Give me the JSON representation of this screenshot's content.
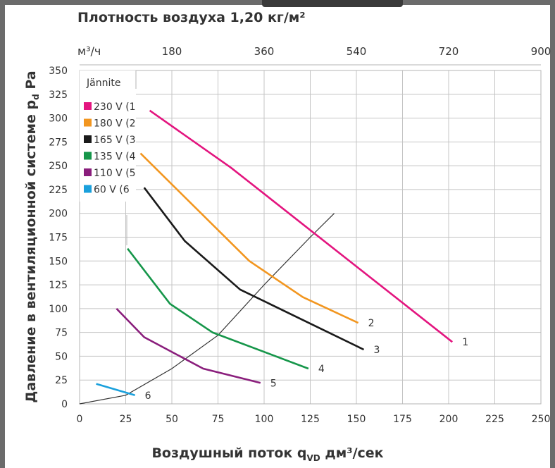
{
  "density_label": "Плотность воздуха 1,20 кг/м²",
  "chart_data": {
    "type": "line",
    "xlabel": "Воздушный поток q",
    "xlabel_sub": "VD",
    "xlabel_unit": " дм³/сек",
    "ylabel": "Давление в вентиляционной системе p",
    "ylabel_sub": "d",
    "ylabel_unit": " Pa",
    "xlim": [
      0,
      250
    ],
    "ylim": [
      0,
      350
    ],
    "x_ticks": [
      0,
      25,
      50,
      75,
      100,
      125,
      150,
      175,
      200,
      225,
      250
    ],
    "y_ticks": [
      0,
      25,
      50,
      75,
      100,
      125,
      150,
      175,
      200,
      225,
      250,
      275,
      300,
      325,
      350
    ],
    "secondary_x": {
      "unit_label": "м³/ч",
      "ticks": [
        180,
        360,
        540,
        720,
        900
      ],
      "factor": 3.6
    },
    "grid": true,
    "legend": {
      "title": "Jännite",
      "placement": "top-left"
    },
    "series": [
      {
        "name": "230 V",
        "legend_label": "230 V  (1",
        "end_label": "1",
        "color": "#e3157f",
        "points": [
          [
            38,
            308
          ],
          [
            82,
            248
          ],
          [
            202,
            65
          ]
        ]
      },
      {
        "name": "180 V",
        "legend_label": "180 V  (2",
        "end_label": "2",
        "color": "#f2961f",
        "points": [
          [
            33,
            263
          ],
          [
            92,
            150
          ],
          [
            121,
            112
          ],
          [
            151,
            85
          ]
        ]
      },
      {
        "name": "165 V",
        "legend_label": "165 V  (3",
        "end_label": "3",
        "color": "#1a1a1a",
        "points": [
          [
            35,
            227
          ],
          [
            57,
            171
          ],
          [
            87,
            120
          ],
          [
            154,
            57
          ]
        ]
      },
      {
        "name": "135 V",
        "legend_label": "135 V  (4",
        "end_label": "4",
        "color": "#16964a",
        "points": [
          [
            26,
            163
          ],
          [
            49,
            105
          ],
          [
            72,
            75
          ],
          [
            124,
            37
          ]
        ]
      },
      {
        "name": "110 V",
        "legend_label": "110 V  (5",
        "end_label": "5",
        "color": "#8a1e7c",
        "points": [
          [
            20,
            100
          ],
          [
            35,
            70
          ],
          [
            67,
            37
          ],
          [
            98,
            22
          ]
        ]
      },
      {
        "name": "60 V",
        "legend_label": " 60 V  (6",
        "end_label": "6",
        "color": "#1aa0dc",
        "points": [
          [
            9,
            21
          ],
          [
            30,
            9
          ]
        ]
      }
    ],
    "system_curve": {
      "color": "#333333",
      "points": [
        [
          0,
          0
        ],
        [
          25,
          9
        ],
        [
          50,
          37
        ],
        [
          75,
          72
        ],
        [
          100,
          125
        ],
        [
          125,
          175
        ],
        [
          138,
          200
        ]
      ]
    }
  }
}
